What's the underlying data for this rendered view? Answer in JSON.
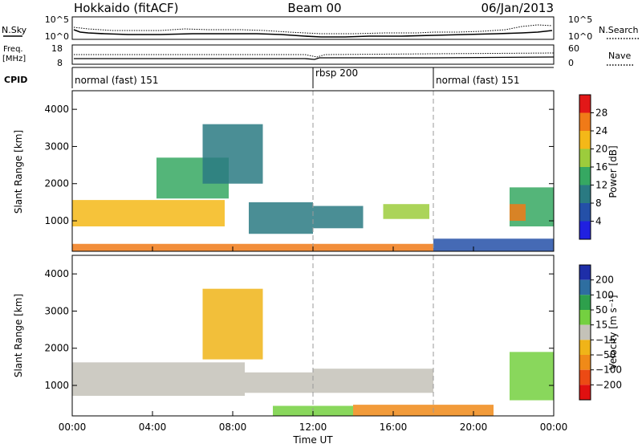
{
  "header": {
    "site": "Hokkaido (fitACF)",
    "beam": "Beam 00",
    "date": "06/Jan/2013"
  },
  "strips": {
    "nsky_label": "N.Sky",
    "nsearch_label": "N.Search",
    "noise_ticks_left": [
      "10^5",
      "10^0"
    ],
    "noise_ticks_right": [
      "10^5",
      "10^0"
    ],
    "freq_label": "Freq.",
    "freq_unit": "[MHz]",
    "freq_ticks": [
      "18",
      "8"
    ],
    "nave_label": "Nave",
    "nave_ticks": [
      "60",
      "0"
    ],
    "cpid_label": "CPID",
    "modes": [
      {
        "label": "normal (fast) 151",
        "start_hour": 0
      },
      {
        "label": "rbsp 200",
        "start_hour": 12
      },
      {
        "label": "normal (fast) 151",
        "start_hour": 18
      }
    ]
  },
  "x_axis": {
    "label": "Time UT",
    "ticks": [
      "00:00",
      "04:00",
      "08:00",
      "12:00",
      "16:00",
      "20:00",
      "00:00"
    ]
  },
  "power_scale": {
    "label": "Power [dB]",
    "ticks": [
      "28",
      "24",
      "20",
      "16",
      "12",
      "8",
      "4"
    ],
    "colors": [
      "#e21818",
      "#f07a18",
      "#f4b818",
      "#9ccc3c",
      "#36a862",
      "#2a7a82",
      "#2450a8",
      "#2020e0"
    ]
  },
  "velocity_scale": {
    "label": "Velocity [m s⁻¹]",
    "ticks": [
      "200",
      "100",
      "50",
      "15",
      "−15",
      "−50",
      "−100",
      "−200"
    ],
    "colors": [
      "#1e2ea8",
      "#2e6ea0",
      "#2ea04c",
      "#74d040",
      "#c4c2b8",
      "#f0b418",
      "#f08a18",
      "#ec4a14",
      "#e01010"
    ]
  },
  "chart_data": [
    {
      "type": "heatmap",
      "quantity": "Power [dB]",
      "xlabel": "Time UT",
      "ylabel": "Slant Range [km]",
      "xlim_hours": [
        0,
        24
      ],
      "ylim_km": [
        180,
        4500
      ],
      "y_ticks": [
        1000,
        2000,
        3000,
        4000
      ],
      "regions": [
        {
          "t": [
            0.0,
            7.6
          ],
          "r": [
            850,
            1560
          ],
          "power_db": 22
        },
        {
          "t": [
            4.2,
            7.8
          ],
          "r": [
            1600,
            2700
          ],
          "power_db": 14
        },
        {
          "t": [
            6.5,
            9.5
          ],
          "r": [
            2000,
            3600
          ],
          "power_db": 8
        },
        {
          "t": [
            8.8,
            12.0
          ],
          "r": [
            650,
            1500
          ],
          "power_db": 10
        },
        {
          "t": [
            12.0,
            14.5
          ],
          "r": [
            800,
            1400
          ],
          "power_db": 8
        },
        {
          "t": [
            15.5,
            17.8
          ],
          "r": [
            1050,
            1450
          ],
          "power_db": 18
        },
        {
          "t": [
            0.0,
            18.0
          ],
          "r": [
            180,
            380
          ],
          "power_db": 26
        },
        {
          "t": [
            18.0,
            24.0
          ],
          "r": [
            180,
            520
          ],
          "power_db": 6
        },
        {
          "t": [
            21.8,
            24.0
          ],
          "r": [
            850,
            1900
          ],
          "power_db": 14
        },
        {
          "t": [
            21.8,
            22.6
          ],
          "r": [
            1000,
            1450
          ],
          "power_db": 26
        }
      ]
    },
    {
      "type": "heatmap",
      "quantity": "Velocity [m s⁻¹]",
      "xlabel": "Time UT",
      "ylabel": "Slant Range [km]",
      "xlim_hours": [
        0,
        24
      ],
      "ylim_km": [
        180,
        4500
      ],
      "y_ticks": [
        1000,
        2000,
        3000,
        4000
      ],
      "regions": [
        {
          "t": [
            0.0,
            8.6
          ],
          "r": [
            720,
            1620
          ],
          "velocity": 0
        },
        {
          "t": [
            6.5,
            9.5
          ],
          "r": [
            1700,
            3600
          ],
          "velocity": -20
        },
        {
          "t": [
            8.6,
            12.0
          ],
          "r": [
            800,
            1350
          ],
          "velocity": 0
        },
        {
          "t": [
            12.0,
            18.0
          ],
          "r": [
            800,
            1450
          ],
          "velocity": 0
        },
        {
          "t": [
            10.0,
            14.0
          ],
          "r": [
            180,
            450
          ],
          "velocity": 40
        },
        {
          "t": [
            14.0,
            21.0
          ],
          "r": [
            180,
            480
          ],
          "velocity": -60
        },
        {
          "t": [
            21.8,
            24.0
          ],
          "r": [
            600,
            1900
          ],
          "velocity": 25
        }
      ]
    }
  ]
}
